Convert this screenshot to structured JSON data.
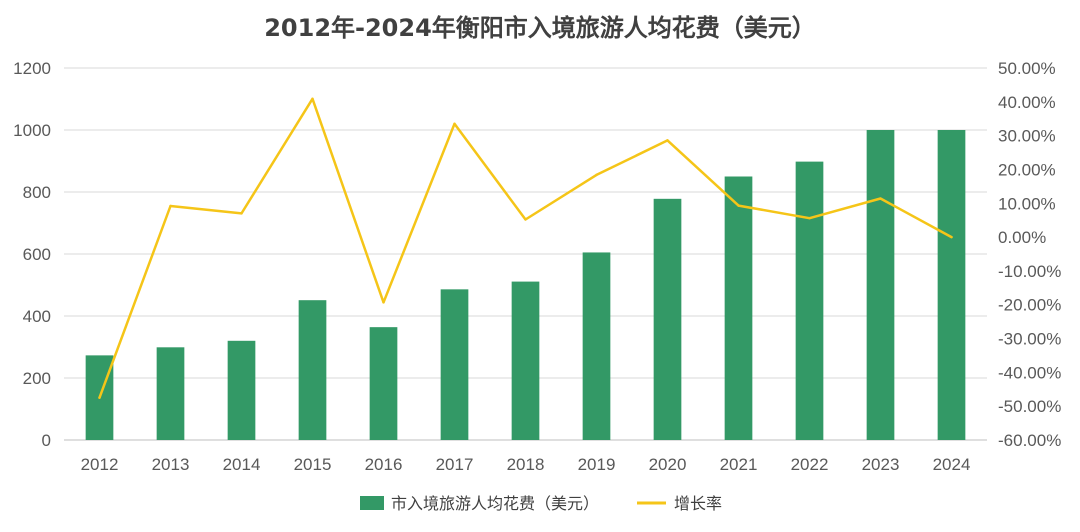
{
  "chart_data": {
    "type": "bar",
    "title": "2012年-2024年衡阳市入境旅游人均花费（美元）",
    "categories": [
      "2012",
      "2013",
      "2014",
      "2015",
      "2016",
      "2017",
      "2018",
      "2019",
      "2020",
      "2021",
      "2022",
      "2023",
      "2024"
    ],
    "series": [
      {
        "name": "市入境旅游人均花费（美元）",
        "type": "bar",
        "axis": "left",
        "color": "#339966",
        "values": [
          273,
          299,
          320,
          451,
          364,
          486,
          511,
          605,
          778,
          850,
          898,
          1000,
          1000
        ]
      },
      {
        "name": "增长率",
        "type": "line",
        "axis": "right",
        "color": "#F5C518",
        "unit": "%",
        "values": [
          -47.5,
          9.2,
          7.0,
          40.9,
          -19.3,
          33.5,
          5.2,
          18.4,
          28.6,
          9.3,
          5.6,
          11.4,
          0.0
        ]
      }
    ],
    "y_left": {
      "min": 0,
      "max": 1200,
      "step": 200,
      "ticks": [
        "0",
        "200",
        "400",
        "600",
        "800",
        "1000",
        "1200"
      ]
    },
    "y_right": {
      "min": -60,
      "max": 50,
      "step": 10,
      "ticks": [
        "-60.00%",
        "-50.00%",
        "-40.00%",
        "-30.00%",
        "-20.00%",
        "-10.00%",
        "0.00%",
        "10.00%",
        "20.00%",
        "30.00%",
        "40.00%",
        "50.00%"
      ]
    },
    "grid": true,
    "legend_position": "bottom"
  }
}
